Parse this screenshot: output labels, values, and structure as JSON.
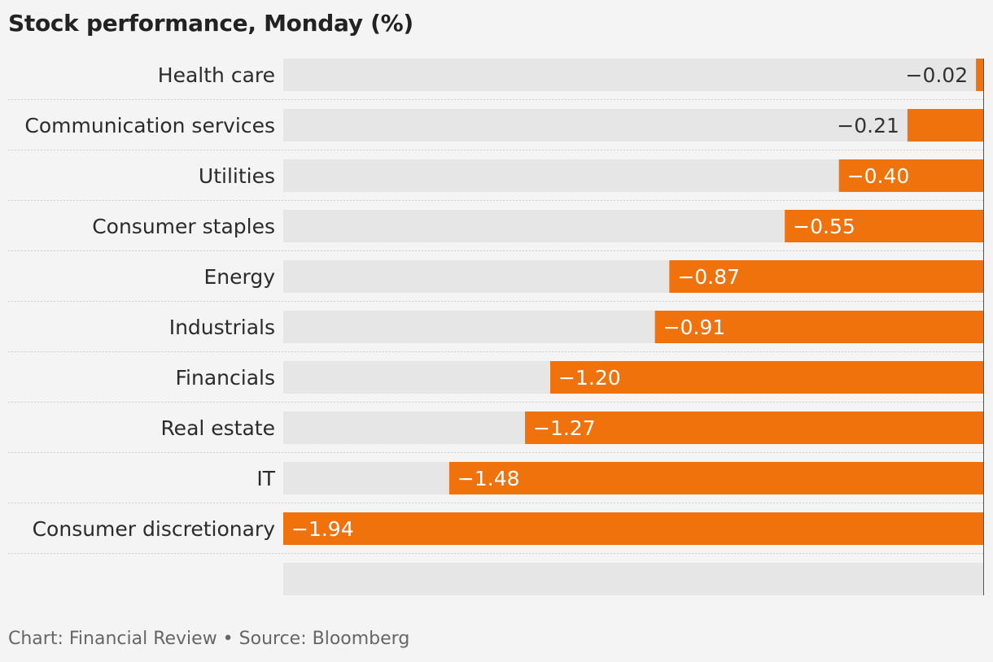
{
  "colors": {
    "page_background": "#f4f4f4",
    "track": "#e6e6e6",
    "bar": "#ef720c",
    "category_text": "#2b2b2b",
    "value_text_outside": "#333333",
    "value_text_inside": "#ffffff",
    "separator": "#cccccc",
    "baseline": "#555555",
    "footer_text": "#666666"
  },
  "chart_data": {
    "type": "bar",
    "orientation": "horizontal",
    "title": "Stock performance, Monday (%)",
    "categories": [
      "Health care",
      "Communication services",
      "Utilities",
      "Consumer staples",
      "Energy",
      "Industrials",
      "Financials",
      "Real estate",
      "IT",
      "Consumer discretionary",
      ""
    ],
    "values": [
      -0.02,
      -0.21,
      -0.4,
      -0.55,
      -0.87,
      -0.91,
      -1.2,
      -1.27,
      -1.48,
      -1.94,
      null
    ],
    "value_labels": [
      "−0.02",
      "−0.21",
      "−0.40",
      "−0.55",
      "−0.87",
      "−0.91",
      "−1.20",
      "−1.27",
      "−1.48",
      "−1.94",
      ""
    ],
    "xlim": [
      -1.94,
      0
    ],
    "grid": false,
    "legend": "none"
  },
  "footer": {
    "text": "Chart: Financial Review • Source: Bloomberg"
  }
}
